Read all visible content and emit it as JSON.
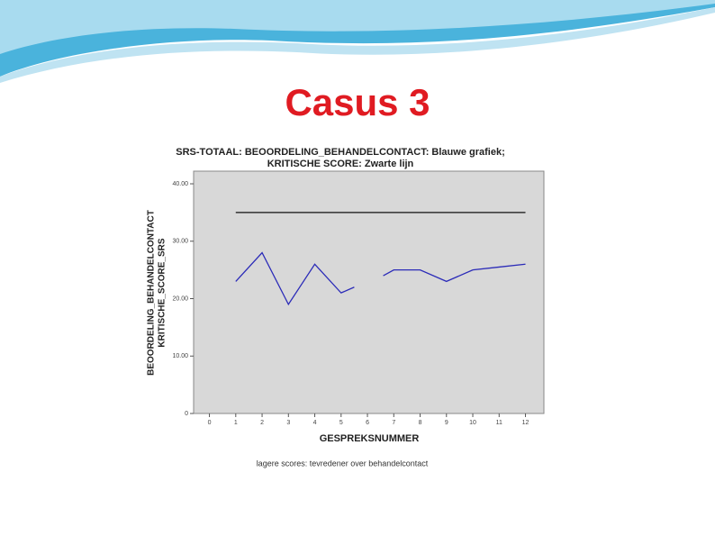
{
  "slide_title": "Casus 3",
  "chart_data": {
    "type": "line",
    "title": [
      "SRS-TOTAAL: BEOORDELING_BEHANDELCONTACT: Blauwe grafiek;",
      "KRITISCHE SCORE: Zwarte lijn"
    ],
    "ylabel": [
      "BEOORDELING_BEHANDELCONTACT",
      "KRITISCHE_SCORE_SRS"
    ],
    "xlabel": "GESPREKSNUMMER",
    "footnote": "lagere scores: tevredener over behandelcontact",
    "xlim": [
      -0.6,
      12.7
    ],
    "ylim": [
      0,
      42.2
    ],
    "xticks": [
      0,
      1,
      2,
      3,
      4,
      5,
      6,
      7,
      8,
      9,
      10,
      11,
      12
    ],
    "yticks": [
      0,
      {
        "value": 10,
        "label": "10.00"
      },
      {
        "value": 20,
        "label": "20.00"
      },
      {
        "value": 30,
        "label": "30.00"
      },
      {
        "value": 40,
        "label": "40.00"
      }
    ],
    "plot_background": "#d8d8d8",
    "series": [
      {
        "color": "#2b2bb8",
        "x": [
          1,
          2,
          3,
          4,
          5,
          5.5,
          6,
          6.6,
          7,
          8,
          9,
          10,
          11,
          12
        ],
        "values": [
          23,
          28,
          19,
          26,
          21,
          22,
          null,
          24,
          25,
          25,
          23,
          25,
          25.5,
          26
        ]
      },
      {
        "color": "#111111",
        "x": [
          1,
          12
        ],
        "values": [
          35,
          35
        ]
      }
    ]
  }
}
